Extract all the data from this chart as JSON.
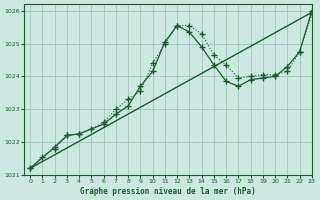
{
  "background_color": "#cce8e0",
  "grid_color": "#a0c8bc",
  "line_color": "#1a5c2a",
  "title": "Graphe pression niveau de la mer (hPa)",
  "xlim": [
    -0.5,
    23
  ],
  "ylim": [
    1021.0,
    1026.2
  ],
  "xticks": [
    0,
    1,
    2,
    3,
    4,
    5,
    6,
    7,
    8,
    9,
    10,
    11,
    12,
    13,
    14,
    15,
    16,
    17,
    18,
    19,
    20,
    21,
    22,
    23
  ],
  "yticks": [
    1021,
    1022,
    1023,
    1024,
    1025,
    1026
  ],
  "line1_x": [
    0,
    1,
    2,
    3,
    4,
    5,
    6,
    7,
    8,
    9,
    10,
    11,
    12,
    13,
    14,
    15,
    16,
    17,
    18,
    19,
    20,
    21,
    22,
    23
  ],
  "line1_y": [
    1021.2,
    1021.55,
    1021.8,
    1022.2,
    1022.25,
    1022.4,
    1022.6,
    1023.0,
    1023.3,
    1023.55,
    1024.4,
    1025.0,
    1025.55,
    1025.55,
    1025.3,
    1024.65,
    1024.35,
    1023.95,
    1024.0,
    1024.05,
    1024.05,
    1024.15,
    1024.75,
    1025.9
  ],
  "line2_x": [
    0,
    2,
    3,
    4,
    6,
    7,
    8,
    9,
    10,
    11,
    12,
    13,
    14,
    15,
    16,
    17,
    18,
    19,
    20,
    21,
    22,
    23
  ],
  "line2_y": [
    1021.2,
    1021.85,
    1022.2,
    1022.25,
    1022.55,
    1022.85,
    1023.1,
    1023.7,
    1024.15,
    1025.05,
    1025.55,
    1025.35,
    1024.9,
    1024.35,
    1023.85,
    1023.7,
    1023.9,
    1023.95,
    1024.0,
    1024.3,
    1024.75,
    1026.0
  ],
  "line3_x": [
    0,
    23
  ],
  "line3_y": [
    1021.2,
    1025.95
  ]
}
